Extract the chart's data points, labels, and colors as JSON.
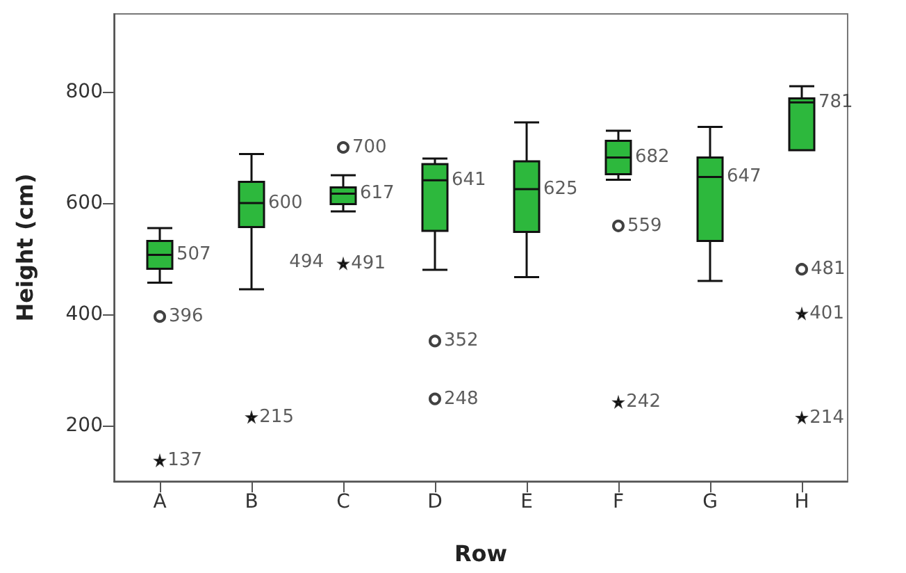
{
  "chart_data": {
    "type": "box",
    "xlabel": "Row",
    "ylabel": "Height (cm)",
    "categories": [
      "A",
      "B",
      "C",
      "D",
      "E",
      "F",
      "G",
      "H"
    ],
    "ylim": [
      100,
      940
    ],
    "yticks": [
      200,
      400,
      600,
      800
    ],
    "grid": false,
    "data_labels": true,
    "series": [
      {
        "color": "#2db83d",
        "marker": "circle",
        "boxes": [
          {
            "low": 457,
            "q1": 482,
            "median": 507,
            "q3": 532,
            "high": 555
          },
          {
            "low": 445,
            "q1": 557,
            "median": 600,
            "q3": 638,
            "high": 688
          },
          {
            "low": 585,
            "q1": 598,
            "median": 617,
            "q3": 628,
            "high": 650
          },
          {
            "low": 480,
            "q1": 550,
            "median": 641,
            "q3": 670,
            "high": 680
          },
          {
            "low": 467,
            "q1": 548,
            "median": 625,
            "q3": 675,
            "high": 745
          },
          {
            "low": 642,
            "q1": 652,
            "median": 682,
            "q3": 712,
            "high": 730
          },
          {
            "low": 460,
            "q1": 532,
            "median": 647,
            "q3": 682,
            "high": 737
          },
          {
            "low": 695,
            "q1": 695,
            "median": 781,
            "q3": 788,
            "high": 810
          }
        ]
      },
      {
        "type": "scatter",
        "marker": "circle",
        "color": "#111111",
        "x": [
          "A",
          "C",
          "D",
          "D",
          "F",
          "H"
        ],
        "values": [
          396,
          700,
          352,
          248,
          559,
          481
        ]
      },
      {
        "type": "scatter",
        "marker": "star",
        "color": "#000000",
        "x": [
          "A",
          "B",
          "C",
          "F",
          "H",
          "H"
        ],
        "values": [
          137,
          215,
          491,
          242,
          401,
          214
        ]
      }
    ],
    "annotations": [
      {
        "text": "507",
        "x": "A",
        "y": 507
      },
      {
        "text": "600",
        "x": "B",
        "y": 600
      },
      {
        "text": "617",
        "x": "C",
        "y": 617
      },
      {
        "text": "641",
        "x": "D",
        "y": 641
      },
      {
        "text": "625",
        "x": "E",
        "y": 625
      },
      {
        "text": "682",
        "x": "F",
        "y": 682
      },
      {
        "text": "647",
        "x": "G",
        "y": 647
      },
      {
        "text": "781",
        "x": "H",
        "y": 781
      },
      {
        "text": "494",
        "x": "C",
        "y": 494
      }
    ]
  }
}
